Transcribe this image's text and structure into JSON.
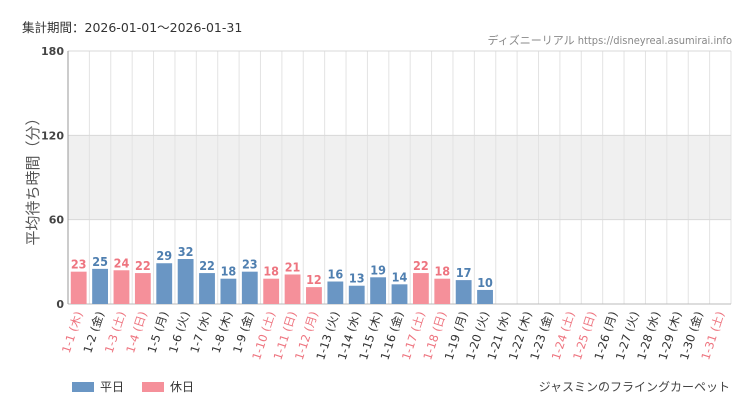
{
  "header": {
    "period_label": "集計期間：2026-01-01～2026-01-31",
    "credit": "ディズニーリアル https://disneyreal.asumirai.info"
  },
  "footer": {
    "attraction": "ジャスミンのフライングカーペット"
  },
  "colors": {
    "weekday": "#6a96c4",
    "holiday": "#f5909a",
    "weekday_label": "#4f7fb0",
    "holiday_label": "#ee7580",
    "band": "#f0f0f0",
    "grid": "#e3e3e3"
  },
  "chart_data": {
    "type": "bar",
    "ylabel": "平均待ち時間（分）",
    "ylim": [
      0,
      180
    ],
    "yticks": [
      0,
      60,
      120,
      180
    ],
    "shaded_band": [
      60,
      120
    ],
    "legend": [
      {
        "name": "平日",
        "kind": "weekday"
      },
      {
        "name": "休日",
        "kind": "holiday"
      }
    ],
    "categories": [
      "1-1 (木)",
      "1-2 (金)",
      "1-3 (土)",
      "1-4 (日)",
      "1-5 (月)",
      "1-6 (火)",
      "1-7 (水)",
      "1-8 (木)",
      "1-9 (金)",
      "1-10 (土)",
      "1-11 (日)",
      "1-12 (月)",
      "1-13 (火)",
      "1-14 (水)",
      "1-15 (木)",
      "1-16 (金)",
      "1-17 (土)",
      "1-18 (日)",
      "1-19 (月)",
      "1-20 (火)",
      "1-21 (水)",
      "1-22 (木)",
      "1-23 (金)",
      "1-24 (土)",
      "1-25 (日)",
      "1-26 (月)",
      "1-27 (火)",
      "1-28 (水)",
      "1-29 (木)",
      "1-30 (金)",
      "1-31 (土)"
    ],
    "kinds": [
      "holiday",
      "weekday",
      "holiday",
      "holiday",
      "weekday",
      "weekday",
      "weekday",
      "weekday",
      "weekday",
      "holiday",
      "holiday",
      "holiday",
      "weekday",
      "weekday",
      "weekday",
      "weekday",
      "holiday",
      "holiday",
      "weekday",
      "weekday",
      "weekday",
      "weekday",
      "weekday",
      "holiday",
      "holiday",
      "weekday",
      "weekday",
      "weekday",
      "weekday",
      "weekday",
      "holiday"
    ],
    "values": [
      23,
      25,
      24,
      22,
      29,
      32,
      22,
      18,
      23,
      18,
      21,
      12,
      16,
      13,
      19,
      14,
      22,
      18,
      17,
      10,
      null,
      null,
      null,
      null,
      null,
      null,
      null,
      null,
      null,
      null,
      null
    ]
  }
}
